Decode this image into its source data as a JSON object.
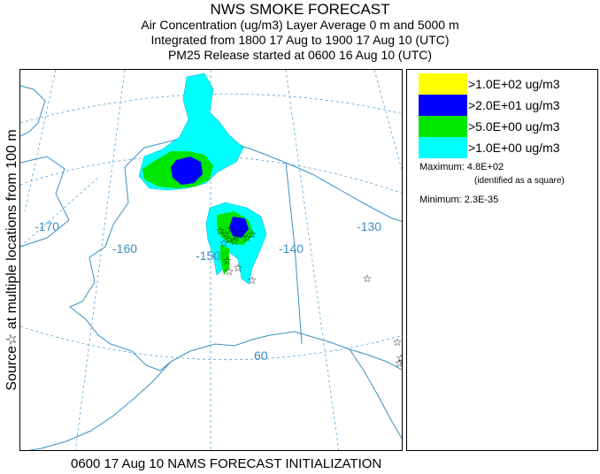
{
  "header": {
    "title": "NWS SMOKE FORECAST",
    "line1": "Air Concentration (ug/m3) Layer Average    0 m and  5000 m",
    "line2": "Integrated from 1800 17 Aug to 1900 17 Aug 10 (UTC)",
    "line3": "PM25 Release started at 0600 16 Aug 10 (UTC)"
  },
  "side_label": "Source☆ at multiple locations   from   100 m",
  "footer": "0600 17 Aug 10 NAMS FORECAST INITIALIZATION",
  "legend": {
    "items": [
      {
        "label": ">1.0E+02 ug/m3",
        "color": "#ffff00"
      },
      {
        "label": ">2.0E+01 ug/m3",
        "color": "#0000ff"
      },
      {
        "label": ">5.0E+00 ug/m3",
        "color": "#00e600"
      },
      {
        "label": ">1.0E+00 ug/m3",
        "color": "#00ffff"
      }
    ],
    "maximum": "Maximum: 4.8E+02",
    "max_note": "(identified as a square)",
    "minimum": "Minimum: 2.3E-35"
  },
  "map": {
    "lon_labels": [
      "-170",
      "-160",
      "-150",
      "-140",
      "-130"
    ],
    "lat_labels": [
      "60"
    ],
    "colors": {
      "coast": "#3a8fc4",
      "grid": "#5aa6d6",
      "star": "#000000"
    }
  }
}
